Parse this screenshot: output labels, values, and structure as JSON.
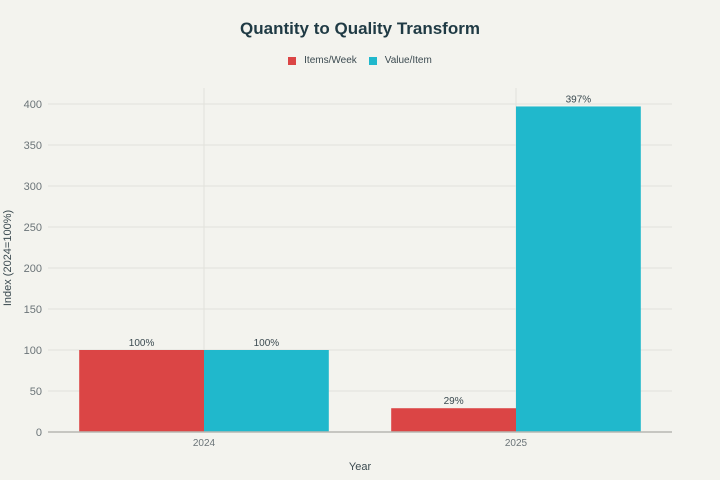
{
  "chart_data": {
    "type": "bar",
    "title": "Quantity to Quality Transform",
    "xlabel": "Year",
    "ylabel": "Index (2024=100%)",
    "categories": [
      "2024",
      "2025"
    ],
    "series": [
      {
        "name": "Items/Week",
        "color": "#db4545",
        "values": [
          100,
          29
        ],
        "labels": [
          "100%",
          "29%"
        ]
      },
      {
        "name": "Value/Item",
        "color": "#20b8cc",
        "values": [
          100,
          397
        ],
        "labels": [
          "100%",
          "397%"
        ]
      }
    ],
    "ylim": [
      0,
      400
    ],
    "yticks": [
      0,
      50,
      100,
      150,
      200,
      250,
      300,
      350,
      400
    ],
    "grid": true,
    "legend_position": "top"
  }
}
